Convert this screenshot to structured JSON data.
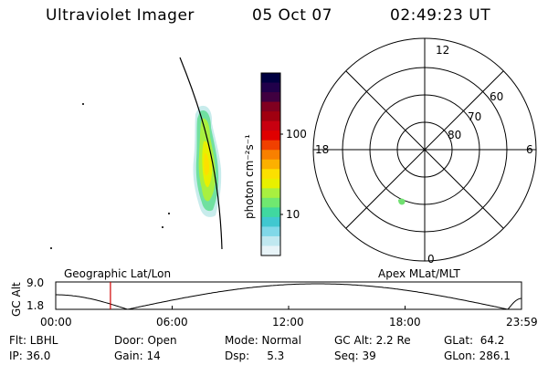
{
  "header": {
    "instrument": "Ultraviolet Imager",
    "date": "05 Oct 07",
    "time": "02:49:23 UT"
  },
  "colorbar": {
    "unit_label": "photon cm⁻²s⁻¹",
    "ticks": [
      {
        "label": "100",
        "value": 100
      },
      {
        "label": "10",
        "value": 10
      }
    ],
    "colors": [
      "#000040",
      "#20004a",
      "#400040",
      "#800020",
      "#a00010",
      "#c80010",
      "#e00000",
      "#f04000",
      "#f88000",
      "#fcb000",
      "#fce000",
      "#e8f000",
      "#a8f040",
      "#70e870",
      "#40d8a0",
      "#40c8d0",
      "#80d8e8",
      "#c0e8f0",
      "#e8f4f8"
    ]
  },
  "polar_plot": {
    "hour_labels": {
      "top": "12",
      "bottom": "0",
      "left": "18",
      "right": "6"
    },
    "lat_labels": [
      "60",
      "70",
      "80"
    ]
  },
  "timeline": {
    "ylabel": "GC Alt",
    "y_ticks": [
      "9.0",
      "1.8"
    ],
    "left_label": "Geographic Lat/Lon",
    "right_label": "Apex MLat/MLT",
    "x_ticks": [
      "00:00",
      "06:00",
      "12:00",
      "18:00",
      "23:59"
    ],
    "marker_time_hours": 2.82
  },
  "info": {
    "filter": "Flt: LBHL",
    "ip": "IP: 36.0",
    "door": "Door: Open",
    "gain": "Gain: 14",
    "mode": "Mode: Normal",
    "dsp": "Dsp:     5.3",
    "gc_alt": "GC Alt: 2.2 Re",
    "seq": "Seq: 39",
    "glat": "GLat:  64.2",
    "glon": "GLon: 286.1"
  }
}
